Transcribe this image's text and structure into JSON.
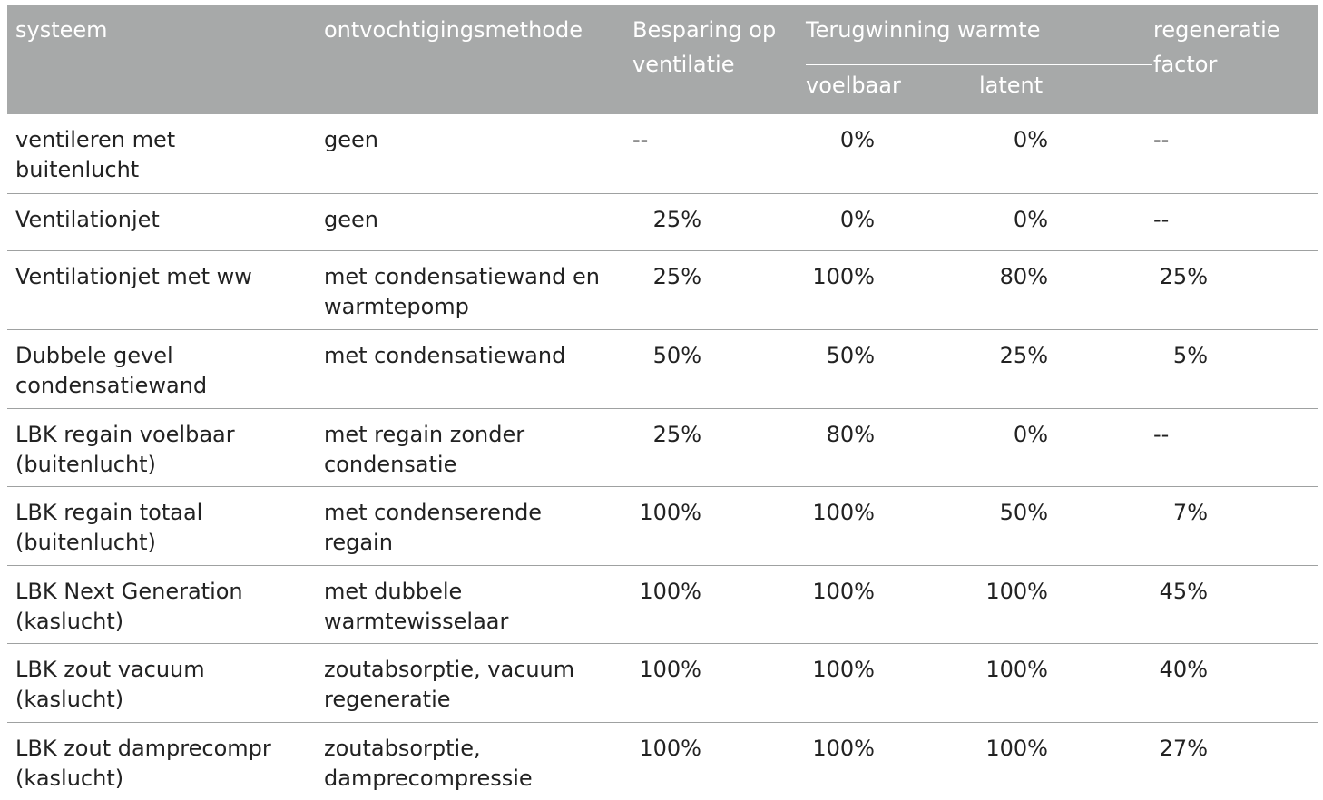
{
  "header": {
    "systeem": "systeem",
    "methode": "ontvochtigingsmethode",
    "besparing_line1": "Besparing op",
    "besparing_line2": "ventilatie",
    "terugwinning": "Terugwinning warmte",
    "voelbaar": "voelbaar",
    "latent": "latent",
    "regeneratie_line1": "regeneratie",
    "regeneratie_line2": "factor"
  },
  "rows": [
    {
      "systeem_1": "ventileren met",
      "systeem_2": "buitenlucht",
      "methode_1": "geen",
      "methode_2": "",
      "besparing": "--",
      "voelbaar": "0%",
      "latent": "0%",
      "regeneratie": "--"
    },
    {
      "systeem_1": "Ventilationjet",
      "systeem_2": "",
      "methode_1": "geen",
      "methode_2": "",
      "besparing": "25%",
      "voelbaar": "0%",
      "latent": "0%",
      "regeneratie": "--"
    },
    {
      "systeem_1": "Ventilationjet met ww",
      "systeem_2": "",
      "methode_1": "met condensatiewand en",
      "methode_2": "warmtepomp",
      "besparing": "25%",
      "voelbaar": "100%",
      "latent": "80%",
      "regeneratie": "25%"
    },
    {
      "systeem_1": "Dubbele gevel",
      "systeem_2": "condensatiewand",
      "methode_1": "met condensatiewand",
      "methode_2": "",
      "besparing": "50%",
      "voelbaar": "50%",
      "latent": "25%",
      "regeneratie": "5%"
    },
    {
      "systeem_1": "LBK regain voelbaar",
      "systeem_2": "(buitenlucht)",
      "methode_1": "met regain zonder",
      "methode_2": "condensatie",
      "besparing": "25%",
      "voelbaar": "80%",
      "latent": "0%",
      "regeneratie": "--"
    },
    {
      "systeem_1": "LBK regain totaal",
      "systeem_2": "(buitenlucht)",
      "methode_1": "met condenserende",
      "methode_2": "regain",
      "besparing": "100%",
      "voelbaar": "100%",
      "latent": "50%",
      "regeneratie": "7%"
    },
    {
      "systeem_1": "LBK Next Generation",
      "systeem_2": "(kaslucht)",
      "methode_1": "met dubbele",
      "methode_2": "warmtewisselaar",
      "besparing": "100%",
      "voelbaar": "100%",
      "latent": "100%",
      "regeneratie": "45%"
    },
    {
      "systeem_1": "LBK zout vacuum",
      "systeem_2": "(kaslucht)",
      "methode_1": "zoutabsorptie, vacuum",
      "methode_2": "regeneratie",
      "besparing": "100%",
      "voelbaar": "100%",
      "latent": "100%",
      "regeneratie": "40%"
    },
    {
      "systeem_1": "LBK zout damprecompr",
      "systeem_2": "(kaslucht)",
      "methode_1": "zoutabsorptie,",
      "methode_2": "damprecompressie",
      "besparing": "100%",
      "voelbaar": "100%",
      "latent": "100%",
      "regeneratie": "27%"
    }
  ],
  "colors": {
    "header_bg": "#a7a9a9",
    "header_text": "#ffffff",
    "body_text": "#222222",
    "rule": "#9fa1a1"
  }
}
